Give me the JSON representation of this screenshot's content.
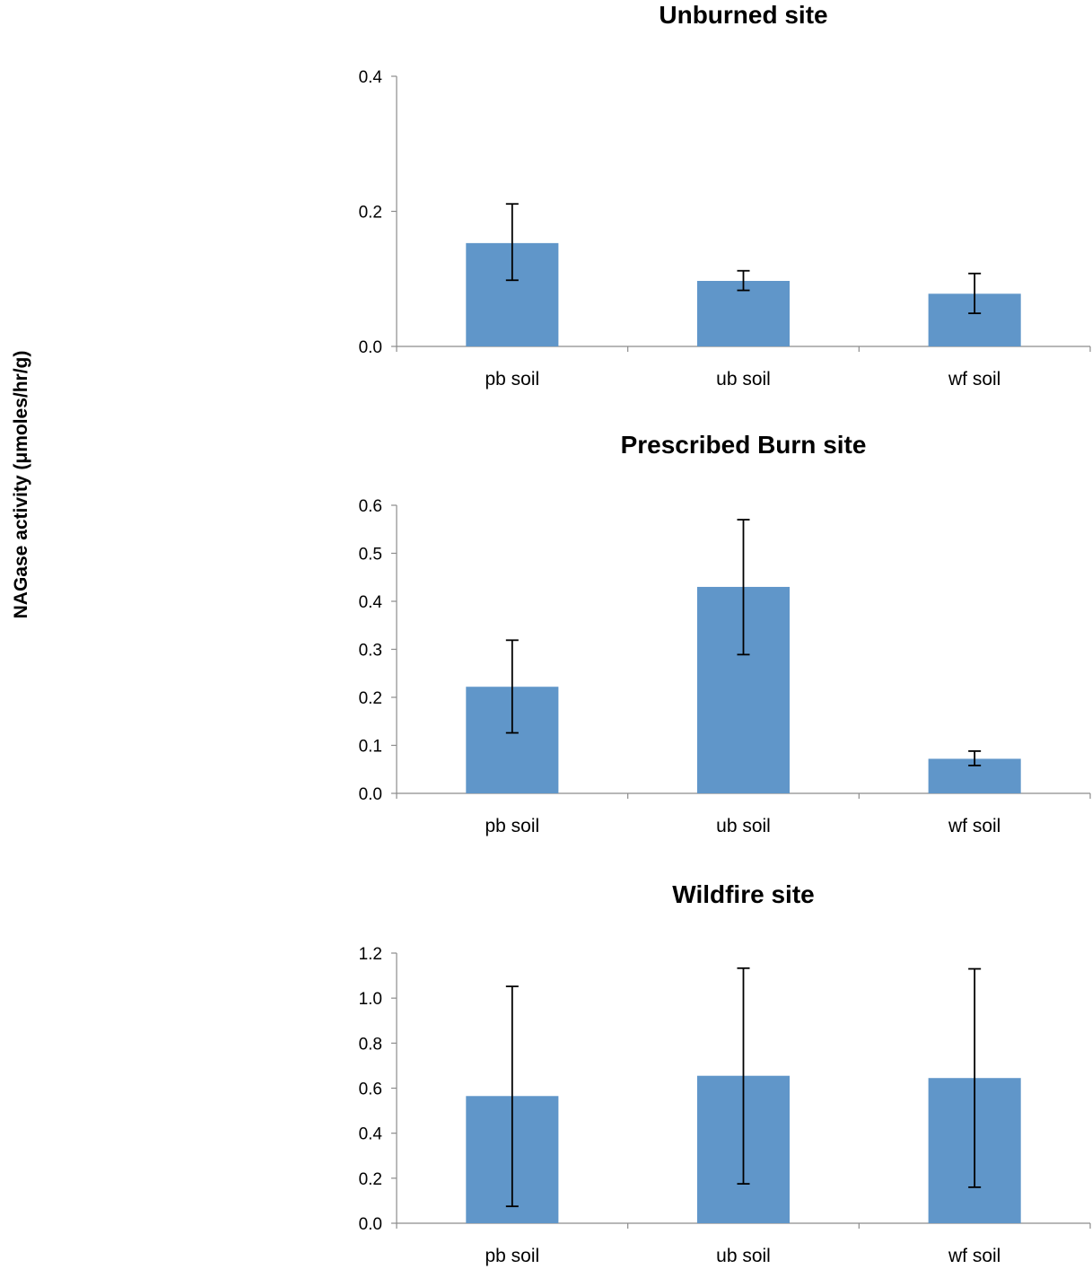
{
  "ylabel": "NAGase activity (μmoles/hr/g)",
  "colors": {
    "bar": "#6096c9",
    "axis": "#8c8c8c",
    "error": "#000000"
  },
  "chart_data": [
    {
      "type": "bar",
      "title": "Unburned site",
      "categories": [
        "pb soil",
        "ub soil",
        "wf soil"
      ],
      "values": [
        0.153,
        0.097,
        0.078
      ],
      "error_low": [
        0.098,
        0.083,
        0.049
      ],
      "error_high": [
        0.211,
        0.112,
        0.108
      ],
      "ylim": [
        0,
        0.4
      ],
      "yticks": [
        "0.0",
        "0.2",
        "0.4"
      ],
      "grid": false,
      "legend": "none"
    },
    {
      "type": "bar",
      "title": "Prescribed Burn site",
      "categories": [
        "pb soil",
        "ub soil",
        "wf soil"
      ],
      "values": [
        0.222,
        0.43,
        0.072
      ],
      "error_low": [
        0.126,
        0.289,
        0.058
      ],
      "error_high": [
        0.319,
        0.57,
        0.088
      ],
      "ylim": [
        0,
        0.6
      ],
      "yticks": [
        "0.0",
        "0.1",
        "0.2",
        "0.3",
        "0.4",
        "0.5",
        "0.6"
      ],
      "grid": false,
      "legend": "none"
    },
    {
      "type": "bar",
      "title": "Wildfire site",
      "categories": [
        "pb soil",
        "ub soil",
        "wf soil"
      ],
      "values": [
        0.565,
        0.655,
        0.645
      ],
      "error_low": [
        0.075,
        0.175,
        0.16
      ],
      "error_high": [
        1.052,
        1.133,
        1.13
      ],
      "ylim": [
        0,
        1.2
      ],
      "yticks": [
        "0.0",
        "0.2",
        "0.4",
        "0.6",
        "0.8",
        "1.0",
        "1.2"
      ],
      "grid": false,
      "legend": "none"
    }
  ]
}
